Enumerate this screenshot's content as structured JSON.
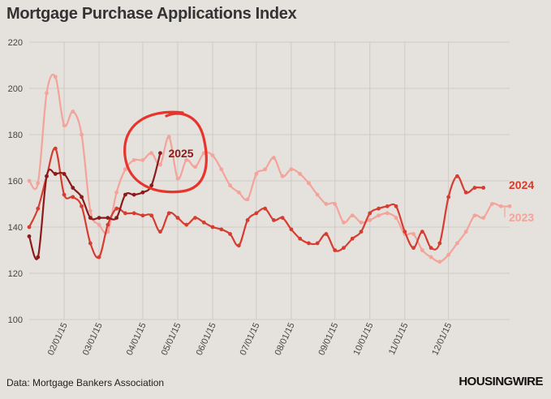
{
  "title": "Mortgage Purchase Applications Index",
  "source": "Data: Mortgage Bankers Association",
  "brand": "HOUSINGWIRE",
  "colors": {
    "background": "#e5e1dc",
    "grid": "#cfcac4",
    "s2023": "#f4a39a",
    "s2024": "#d63c30",
    "s2025": "#8b1a1a",
    "circle": "#e8342a"
  },
  "chart_data": {
    "type": "line",
    "title": "Mortgage Purchase Applications Index",
    "xlabel": "",
    "ylabel": "",
    "ylim": [
      100,
      220
    ],
    "yticks": [
      100,
      120,
      140,
      160,
      180,
      200,
      220
    ],
    "xticks": [
      "02/01/15",
      "03/01/15",
      "04/01/15",
      "05/01/15",
      "06/01/15",
      "07/01/15",
      "08/01/15",
      "09/01/15",
      "10/01/15",
      "11/01/15",
      "12/01/15"
    ],
    "x_week_start": 1,
    "grid": true,
    "legend": "end-of-line labels",
    "series": [
      {
        "name": "2023",
        "values": [
          160,
          159,
          198,
          205,
          184,
          190,
          180,
          147,
          141,
          138,
          155,
          165,
          169,
          169,
          172,
          167,
          179,
          161,
          169,
          166,
          172,
          171,
          165,
          158,
          155,
          152,
          163,
          165,
          170,
          162,
          165,
          163,
          159,
          154,
          150,
          150,
          142,
          145,
          142,
          143,
          145,
          146,
          144,
          137,
          137,
          130,
          127,
          125,
          128,
          133,
          138,
          145,
          144,
          150,
          149,
          149
        ]
      },
      {
        "name": "2024",
        "values": [
          140,
          148,
          162,
          174,
          154,
          153,
          149,
          133,
          127,
          141,
          148,
          146,
          146,
          145,
          145,
          138,
          146,
          144,
          141,
          144,
          142,
          140,
          139,
          137,
          132,
          143,
          146,
          148,
          143,
          144,
          139,
          135,
          133,
          133,
          137,
          130,
          131,
          135,
          138,
          146,
          148,
          149,
          149,
          138,
          131,
          138,
          131,
          133,
          153,
          162,
          155,
          157,
          157
        ]
      },
      {
        "name": "2025",
        "values": [
          136,
          127,
          162,
          163,
          163,
          157,
          153,
          144,
          144,
          144,
          144,
          154,
          154,
          155,
          158,
          172
        ]
      }
    ]
  }
}
